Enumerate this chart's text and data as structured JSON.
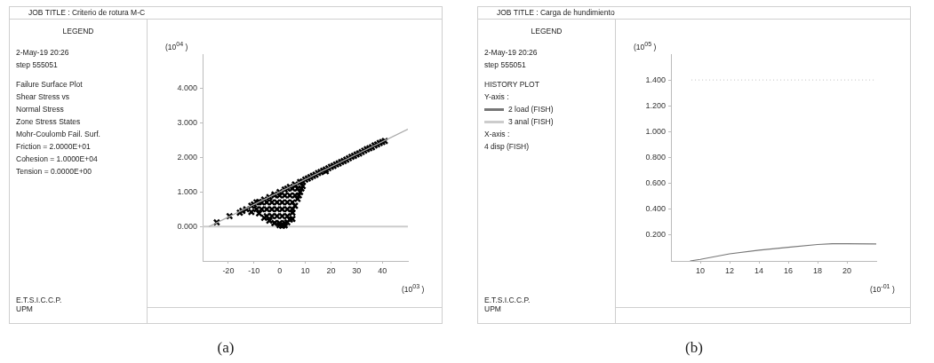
{
  "chart_data": [
    {
      "type": "scatter",
      "title": "JOB TITLE : Criterio de rotura M-C",
      "legend_title": "LEGEND",
      "xlabel": "(10$^{03}$ )",
      "ylabel": "(10$^{04}$ )",
      "annotations": [
        "2-May-19 20:26",
        "step 555051",
        "Failure Surface Plot",
        "Shear Stress vs",
        "Normal Stress",
        "Zone Stress States",
        "Mohr-Coulomb Fail. Surf.",
        "Friction = 2.0000E+01",
        "Cohesion = 1.0000E+04",
        "Tension = 0.0000E+00",
        "E.T.S.I.C.C.P.",
        "UPM",
        "(a)"
      ],
      "xlim": [
        -30,
        50
      ],
      "xticks": [
        -20,
        -10,
        0,
        10,
        20,
        30,
        40
      ],
      "ylim": [
        -1,
        5
      ],
      "yticks": [
        {
          "value": 0,
          "label": "0.000"
        },
        {
          "value": 1,
          "label": "1.000"
        },
        {
          "value": 2,
          "label": "2.000"
        },
        {
          "value": 3,
          "label": "3.000"
        },
        {
          "value": 4,
          "label": "4.000"
        }
      ],
      "grid": false,
      "legend": false,
      "ref_lines": [
        {
          "axis": "y",
          "value": 0,
          "color": "#cccccc"
        }
      ],
      "series": [
        {
          "type": "line",
          "color": "#aaaaaa",
          "marker": "none",
          "x": [
            -27.5,
            50
          ],
          "values": [
            0,
            2.82
          ]
        },
        {
          "color": "#000000",
          "marker": "cross",
          "x": [
            -24.5,
            -19.5,
            -15.5,
            -14.5,
            -13,
            -11,
            -11,
            -10,
            -8,
            -6,
            -4,
            -2,
            0,
            2,
            4,
            6,
            8,
            10,
            -9,
            -8,
            -6,
            -4,
            -2,
            0,
            1,
            2,
            3,
            4,
            5,
            5,
            6,
            7,
            8,
            9,
            -2,
            0,
            2,
            -5,
            -3,
            -1,
            1,
            3,
            -7,
            -5,
            -3,
            -1,
            1,
            3,
            5,
            -9,
            -7,
            -5,
            -3,
            -1,
            1,
            3,
            5,
            -2,
            0,
            2,
            4,
            6,
            7.5,
            3,
            5,
            7,
            8.5,
            9,
            11,
            12,
            13,
            14,
            15,
            16,
            17,
            18,
            18,
            19,
            20,
            21,
            22,
            23,
            24,
            25,
            26,
            27,
            28,
            29,
            30,
            31,
            32,
            33,
            34,
            35,
            36,
            37,
            38,
            39,
            40,
            41
          ],
          "values": [
            0.12,
            0.3,
            0.4,
            0.45,
            0.5,
            0.42,
            0.6,
            0.64,
            0.71,
            0.78,
            0.85,
            0.93,
            1.0,
            1.07,
            1.15,
            1.22,
            1.29,
            1.36,
            0.5,
            0.38,
            0.25,
            0.17,
            0.1,
            0.04,
            0.02,
            0.03,
            0.12,
            0.2,
            0.22,
            0.4,
            0.6,
            0.8,
            1.0,
            1.17,
            0.1,
            0.1,
            0.1,
            0.3,
            0.3,
            0.3,
            0.3,
            0.3,
            0.5,
            0.5,
            0.5,
            0.5,
            0.5,
            0.5,
            0.5,
            0.7,
            0.7,
            0.7,
            0.7,
            0.7,
            0.7,
            0.7,
            0.7,
            0.9,
            0.9,
            0.9,
            0.9,
            0.9,
            0.9,
            1.1,
            1.1,
            1.1,
            1.1,
            1.3,
            1.39,
            1.43,
            1.47,
            1.5,
            1.55,
            1.58,
            1.62,
            1.65,
            1.6,
            1.69,
            1.73,
            1.76,
            1.8,
            1.83,
            1.87,
            1.9,
            1.94,
            1.98,
            2.02,
            2.05,
            2.09,
            2.12,
            2.16,
            2.2,
            2.24,
            2.27,
            2.3,
            2.35,
            2.38,
            2.42,
            2.45,
            2.48
          ]
        }
      ]
    },
    {
      "type": "line",
      "title": "JOB TITLE : Carga de hundimiento",
      "legend_title": "LEGEND",
      "xlabel": "(10$^{-01}$ )",
      "ylabel": "(10$^{05}$ )",
      "annotations": [
        "2-May-19 20:26",
        "step 555051",
        "HISTORY PLOT",
        "Y-axis :",
        "X-axis :",
        "4 disp (FISH)",
        "E.T.S.I.C.C.P.",
        "UPM",
        "(b)"
      ],
      "xlim": [
        8,
        22
      ],
      "xticks": [
        10,
        12,
        14,
        16,
        18,
        20
      ],
      "ylim": [
        0,
        1.6
      ],
      "yticks": [
        {
          "value": 0.2,
          "label": "0.200"
        },
        {
          "value": 0.4,
          "label": "0.400"
        },
        {
          "value": 0.6,
          "label": "0.600"
        },
        {
          "value": 0.8,
          "label": "0.800"
        },
        {
          "value": 1.0,
          "label": "1.000"
        },
        {
          "value": 1.2,
          "label": "1.200"
        },
        {
          "value": 1.4,
          "label": "1.400"
        }
      ],
      "grid": false,
      "legend": "left",
      "marker": "none",
      "series": [
        {
          "name": "2 load (FISH)",
          "color": "#777777",
          "line_style": "solid",
          "x": [
            9.3,
            10,
            12,
            14,
            16,
            18,
            19,
            20,
            22
          ],
          "values": [
            0,
            0.012,
            0.055,
            0.083,
            0.105,
            0.127,
            0.133,
            0.133,
            0.132
          ]
        },
        {
          "name": "3 anal (FISH)",
          "color": "#cccccc",
          "line_style": "dotted",
          "x": [
            9.4,
            21.9
          ],
          "values": [
            1.4,
            1.4
          ]
        }
      ]
    }
  ]
}
